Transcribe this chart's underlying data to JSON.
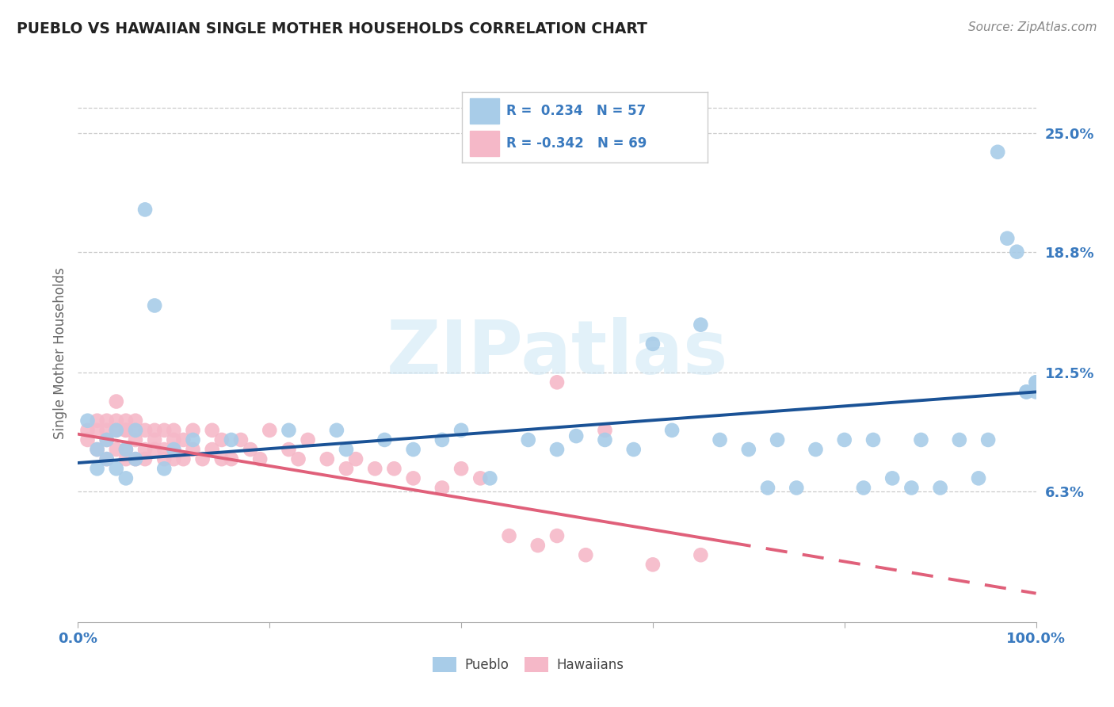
{
  "title": "PUEBLO VS HAWAIIAN SINGLE MOTHER HOUSEHOLDS CORRELATION CHART",
  "source": "Source: ZipAtlas.com",
  "ylabel": "Single Mother Households",
  "ytick_labels": [
    "6.3%",
    "12.5%",
    "18.8%",
    "25.0%"
  ],
  "ytick_values": [
    0.063,
    0.125,
    0.188,
    0.25
  ],
  "xmin": 0.0,
  "xmax": 1.0,
  "ymin": -0.005,
  "ymax": 0.275,
  "pueblo_color": "#a8cce8",
  "hawaiian_color": "#f5b8c8",
  "pueblo_line_color": "#1a5296",
  "hawaiian_line_color": "#e0607a",
  "watermark_color": "#d0e8f5",
  "pueblo_R": 0.234,
  "pueblo_N": 57,
  "hawaiian_R": -0.342,
  "hawaiian_N": 69,
  "watermark": "ZIPatlas",
  "pueblo_x": [
    0.01,
    0.02,
    0.02,
    0.03,
    0.03,
    0.04,
    0.04,
    0.05,
    0.05,
    0.06,
    0.06,
    0.07,
    0.08,
    0.09,
    0.1,
    0.12,
    0.16,
    0.22,
    0.27,
    0.28,
    0.32,
    0.35,
    0.38,
    0.4,
    0.43,
    0.47,
    0.5,
    0.52,
    0.55,
    0.58,
    0.6,
    0.62,
    0.65,
    0.67,
    0.7,
    0.72,
    0.73,
    0.75,
    0.77,
    0.8,
    0.82,
    0.83,
    0.85,
    0.87,
    0.88,
    0.9,
    0.92,
    0.94,
    0.95,
    0.96,
    0.97,
    0.98,
    0.99,
    0.99,
    1.0,
    1.0,
    1.0
  ],
  "pueblo_y": [
    0.1,
    0.085,
    0.075,
    0.09,
    0.08,
    0.095,
    0.075,
    0.085,
    0.07,
    0.095,
    0.08,
    0.21,
    0.16,
    0.075,
    0.085,
    0.09,
    0.09,
    0.095,
    0.095,
    0.085,
    0.09,
    0.085,
    0.09,
    0.095,
    0.07,
    0.09,
    0.085,
    0.092,
    0.09,
    0.085,
    0.14,
    0.095,
    0.15,
    0.09,
    0.085,
    0.065,
    0.09,
    0.065,
    0.085,
    0.09,
    0.065,
    0.09,
    0.07,
    0.065,
    0.09,
    0.065,
    0.09,
    0.07,
    0.09,
    0.24,
    0.195,
    0.188,
    0.115,
    0.115,
    0.115,
    0.12,
    0.12
  ],
  "hawaiian_x": [
    0.01,
    0.01,
    0.02,
    0.02,
    0.02,
    0.03,
    0.03,
    0.03,
    0.03,
    0.04,
    0.04,
    0.04,
    0.04,
    0.05,
    0.05,
    0.05,
    0.05,
    0.05,
    0.06,
    0.06,
    0.06,
    0.06,
    0.07,
    0.07,
    0.07,
    0.08,
    0.08,
    0.08,
    0.09,
    0.09,
    0.09,
    0.1,
    0.1,
    0.1,
    0.1,
    0.11,
    0.11,
    0.12,
    0.12,
    0.13,
    0.14,
    0.14,
    0.15,
    0.15,
    0.16,
    0.17,
    0.18,
    0.19,
    0.2,
    0.22,
    0.23,
    0.24,
    0.26,
    0.28,
    0.29,
    0.31,
    0.33,
    0.35,
    0.38,
    0.4,
    0.42,
    0.45,
    0.48,
    0.5,
    0.53,
    0.6,
    0.65,
    0.5,
    0.55
  ],
  "hawaiian_y": [
    0.09,
    0.095,
    0.1,
    0.095,
    0.085,
    0.1,
    0.095,
    0.09,
    0.08,
    0.1,
    0.095,
    0.085,
    0.11,
    0.095,
    0.085,
    0.095,
    0.08,
    0.1,
    0.095,
    0.09,
    0.08,
    0.1,
    0.085,
    0.095,
    0.08,
    0.09,
    0.085,
    0.095,
    0.085,
    0.095,
    0.08,
    0.09,
    0.08,
    0.095,
    0.085,
    0.09,
    0.08,
    0.085,
    0.095,
    0.08,
    0.085,
    0.095,
    0.08,
    0.09,
    0.08,
    0.09,
    0.085,
    0.08,
    0.095,
    0.085,
    0.08,
    0.09,
    0.08,
    0.075,
    0.08,
    0.075,
    0.075,
    0.07,
    0.065,
    0.075,
    0.07,
    0.04,
    0.035,
    0.04,
    0.03,
    0.025,
    0.03,
    0.12,
    0.095
  ],
  "grid_color": "#cccccc",
  "spine_color": "#aaaaaa",
  "tick_color": "#3a7abf",
  "label_color": "#666666"
}
